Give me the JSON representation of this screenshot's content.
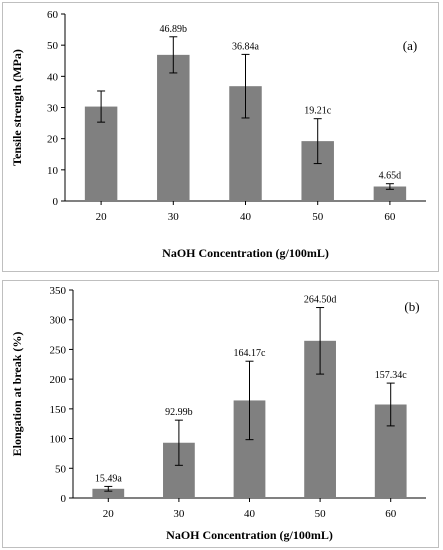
{
  "chart_data": [
    {
      "type": "bar",
      "panel_label": "(a)",
      "categories": [
        "20",
        "30",
        "40",
        "50",
        "60"
      ],
      "values": [
        30.3,
        46.89,
        36.84,
        19.21,
        4.65
      ],
      "errors": [
        5.0,
        5.8,
        10.2,
        7.2,
        0.9
      ],
      "data_labels": [
        "",
        "46.89b",
        "36.84a",
        "19.21c",
        "4.65d"
      ],
      "xlabel": "NaOH Concentration (g/100mL)",
      "ylabel": "Tensile strength (MPa)",
      "ylim": [
        0,
        60
      ],
      "yticks": [
        "0",
        "10",
        "20",
        "30",
        "40",
        "50",
        "60"
      ],
      "bar_color": "#808080",
      "grid": false
    },
    {
      "type": "bar",
      "panel_label": "(b)",
      "categories": [
        "20",
        "30",
        "40",
        "50",
        "60"
      ],
      "values": [
        15.49,
        92.99,
        164.17,
        264.5,
        157.34
      ],
      "errors": [
        4,
        38,
        66,
        56,
        36
      ],
      "data_labels": [
        "15.49a",
        "92.99b",
        "164.17c",
        "264.50d",
        "157.34c"
      ],
      "xlabel": "NaOH Concentration (g/100mL)",
      "ylabel": "Elongation at break (%)",
      "ylim": [
        0,
        350
      ],
      "yticks": [
        "0",
        "50",
        "100",
        "150",
        "200",
        "250",
        "300",
        "350"
      ],
      "bar_color": "#808080",
      "grid": false
    }
  ]
}
